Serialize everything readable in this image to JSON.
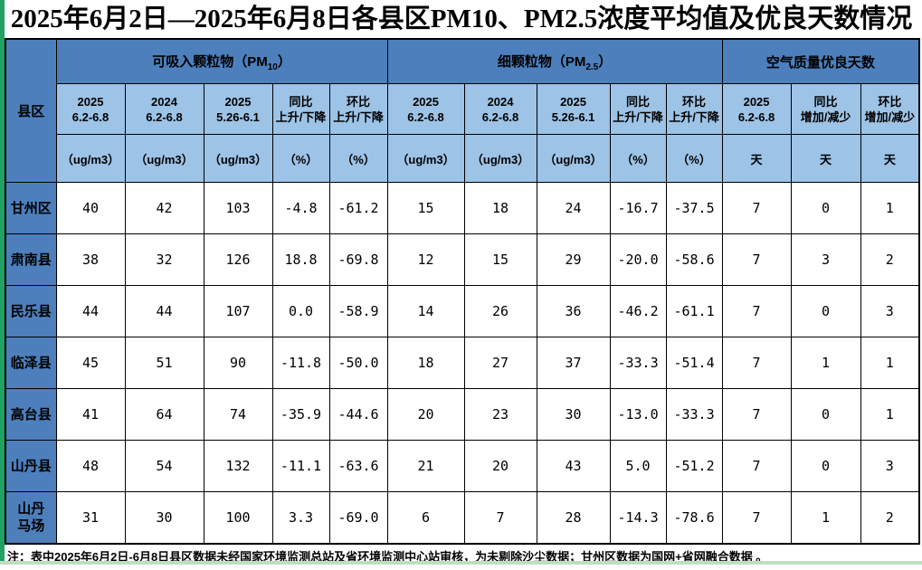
{
  "title": "2025年6月2日—2025年6月8日各县区PM10、PM2.5浓度平均值及优良天数情况",
  "note": "注：表中2025年6月2日-6月8日县区数据未经国家环境监测总站及省环境监测中心站审核，为未剔除沙尘数据；甘州区数据为国网+省网融合数据 。",
  "colors": {
    "group_header_blue": "#4c7fbc",
    "subheader_blue": "#9dc3e6",
    "left_edge_green": "#21a164",
    "bottom_edge_green": "#bfdebf",
    "border": "#000000"
  },
  "table": {
    "corner_label": "县区",
    "groups": [
      {
        "prefix": "可吸入颗粒物（PM",
        "subscript": "10",
        "suffix": "）"
      },
      {
        "prefix": "细颗粒物（PM",
        "subscript": "2.5",
        "suffix": "）"
      },
      {
        "prefix": "空气质量优良天数",
        "subscript": "",
        "suffix": ""
      }
    ],
    "columns": [
      {
        "line1": "2025",
        "line2": "6.2-6.8",
        "unit": "（ug/m3）"
      },
      {
        "line1": "2024",
        "line2": "6.2-6.8",
        "unit": "（ug/m3）"
      },
      {
        "line1": "2025",
        "line2": "5.26-6.1",
        "unit": "（ug/m3）"
      },
      {
        "line1": "同比",
        "line2": "上升/下降",
        "unit": "（%）"
      },
      {
        "line1": "环比",
        "line2": "上升/下降",
        "unit": "（%）"
      },
      {
        "line1": "2025",
        "line2": "6.2-6.8",
        "unit": "（ug/m3）"
      },
      {
        "line1": "2024",
        "line2": "6.2-6.8",
        "unit": "（ug/m3）"
      },
      {
        "line1": "2025",
        "line2": "5.26-6.1",
        "unit": "（ug/m3）"
      },
      {
        "line1": "同比",
        "line2": "上升/下降",
        "unit": "（%）"
      },
      {
        "line1": "环比",
        "line2": "上升/下降",
        "unit": "（%）"
      },
      {
        "line1": "2025",
        "line2": "6.2-6.8",
        "unit": "天"
      },
      {
        "line1": "同比",
        "line2": "增加/减少",
        "unit": "天"
      },
      {
        "line1": "环比",
        "line2": "增加/减少",
        "unit": "天"
      }
    ],
    "rows": [
      {
        "county": "甘州区",
        "values": [
          "40",
          "42",
          "103",
          "-4.8",
          "-61.2",
          "15",
          "18",
          "24",
          "-16.7",
          "-37.5",
          "7",
          "0",
          "1"
        ]
      },
      {
        "county": "肃南县",
        "values": [
          "38",
          "32",
          "126",
          "18.8",
          "-69.8",
          "12",
          "15",
          "29",
          "-20.0",
          "-58.6",
          "7",
          "3",
          "2"
        ]
      },
      {
        "county": "民乐县",
        "values": [
          "44",
          "44",
          "107",
          "0.0",
          "-58.9",
          "14",
          "26",
          "36",
          "-46.2",
          "-61.1",
          "7",
          "0",
          "3"
        ]
      },
      {
        "county": "临泽县",
        "values": [
          "45",
          "51",
          "90",
          "-11.8",
          "-50.0",
          "18",
          "27",
          "37",
          "-33.3",
          "-51.4",
          "7",
          "1",
          "1"
        ]
      },
      {
        "county": "高台县",
        "values": [
          "41",
          "64",
          "74",
          "-35.9",
          "-44.6",
          "20",
          "23",
          "30",
          "-13.0",
          "-33.3",
          "7",
          "0",
          "1"
        ]
      },
      {
        "county": "山丹县",
        "values": [
          "48",
          "54",
          "132",
          "-11.1",
          "-63.6",
          "21",
          "20",
          "43",
          "5.0",
          "-51.2",
          "7",
          "0",
          "3"
        ]
      },
      {
        "county": "山丹\n马场",
        "values": [
          "31",
          "30",
          "100",
          "3.3",
          "-69.0",
          "6",
          "7",
          "28",
          "-14.3",
          "-78.6",
          "7",
          "1",
          "2"
        ]
      }
    ]
  }
}
